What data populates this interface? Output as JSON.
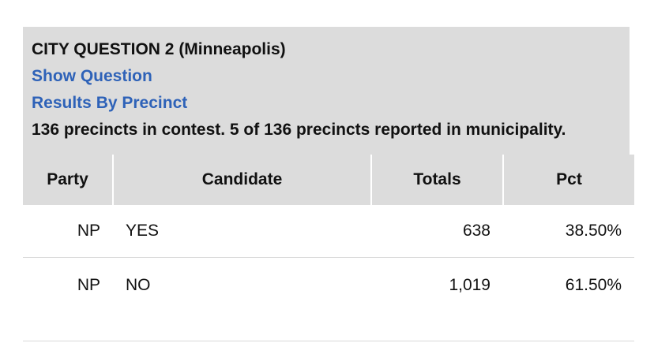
{
  "contest": {
    "title": "CITY QUESTION 2 (Minneapolis)",
    "show_question_link": "Show Question",
    "results_by_precinct_link": "Results By Precinct",
    "summary": "136 precincts in contest. 5 of 136 precincts reported in municipality."
  },
  "table": {
    "headers": {
      "party": "Party",
      "candidate": "Candidate",
      "totals": "Totals",
      "pct": "Pct"
    },
    "rows": [
      {
        "party": "NP",
        "candidate": "YES",
        "totals": "638",
        "pct": "38.50%"
      },
      {
        "party": "NP",
        "candidate": "NO",
        "totals": "1,019",
        "pct": "61.50%"
      }
    ]
  },
  "colors": {
    "header_bg": "#dcdcdc",
    "link": "#2e62b8",
    "text": "#111111"
  }
}
